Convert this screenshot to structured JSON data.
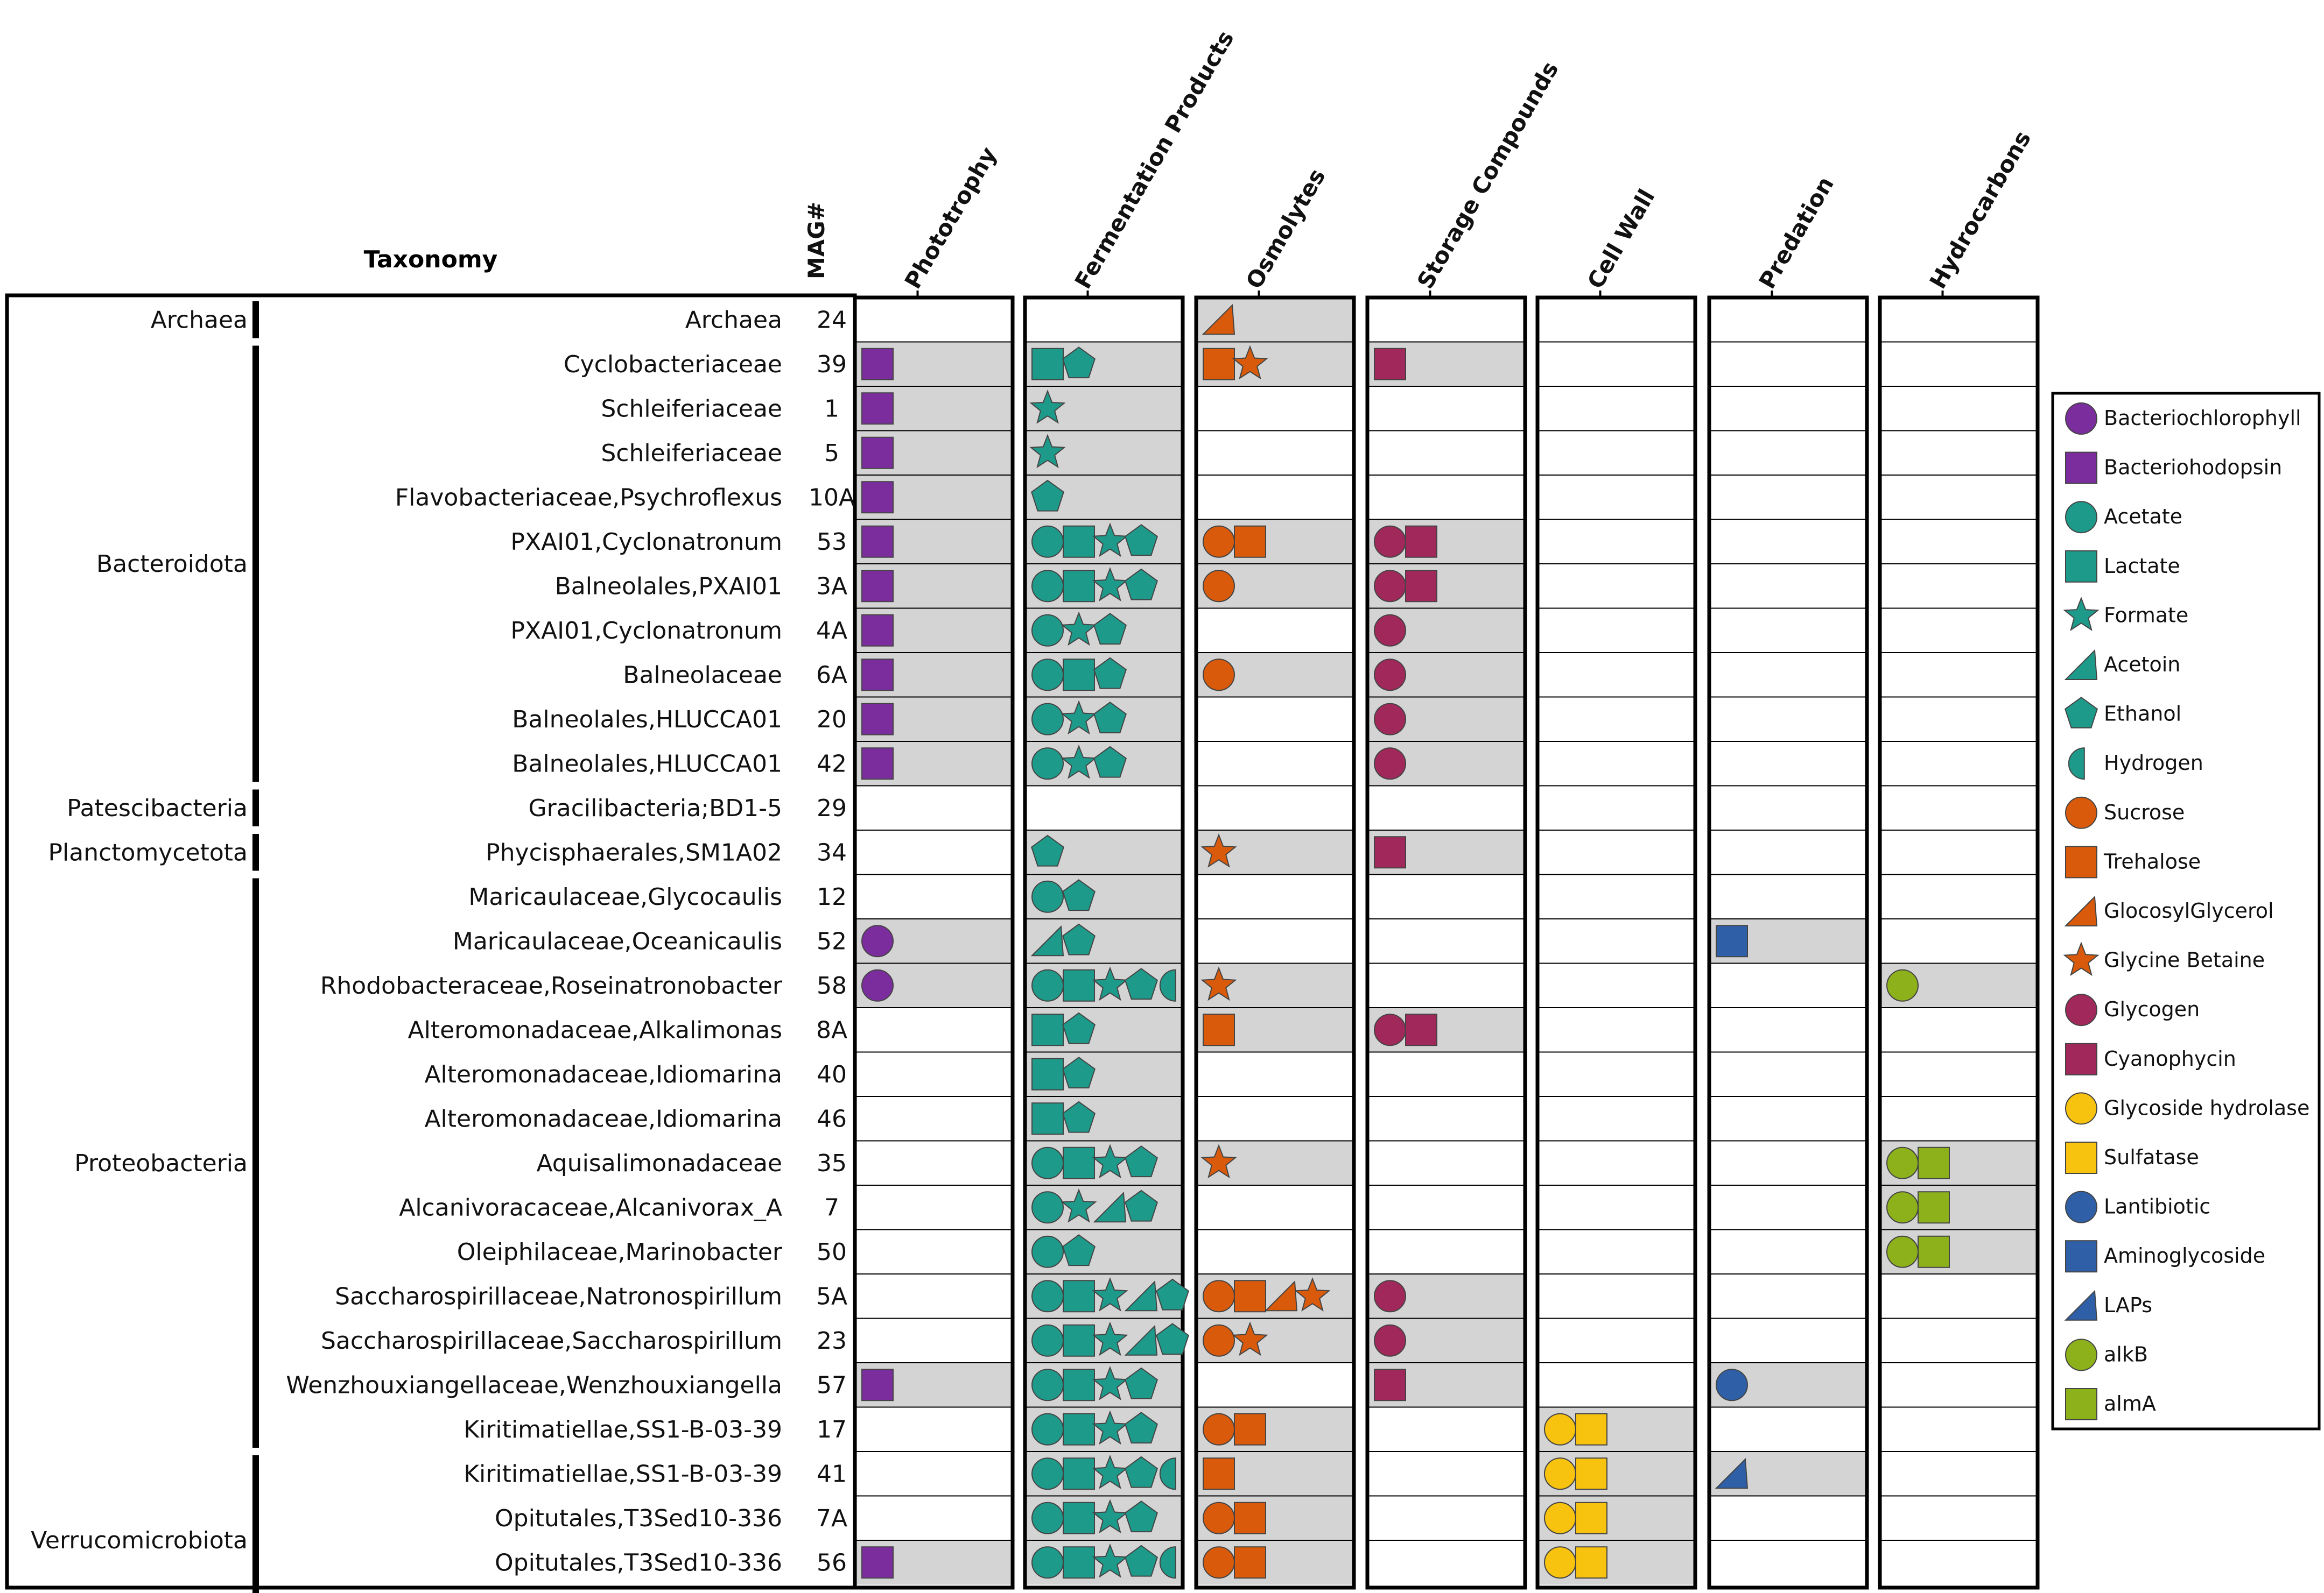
{
  "chart_data": {
    "type": "table",
    "title": "Taxonomy",
    "mag_header": "MAG#",
    "columns": [
      "Phototrophy",
      "Fermentation Products",
      "Osmolytes",
      "Storage Compounds",
      "Cell Wall",
      "Predation",
      "Hydrocarbons"
    ],
    "phyla": [
      {
        "name": "Archaea",
        "rows": [
          0,
          0
        ]
      },
      {
        "name": "Bacteroidota",
        "rows": [
          1,
          10
        ]
      },
      {
        "name": "Patescibacteria",
        "rows": [
          11,
          11
        ]
      },
      {
        "name": "Planctomycetota",
        "rows": [
          12,
          12
        ]
      },
      {
        "name": "Proteobacteria",
        "rows": [
          13,
          25
        ]
      },
      {
        "name": "Verrucomicrobiota",
        "rows": [
          26,
          29
        ]
      }
    ],
    "rows": [
      {
        "taxon": "Archaea",
        "mag": "24",
        "shaded": [
          false,
          false,
          true,
          false,
          false,
          false,
          false
        ],
        "cells": [
          [],
          [],
          [
            "GlocosylGlycerol"
          ],
          [],
          [],
          [],
          []
        ]
      },
      {
        "taxon": "Cyclobacteriaceae",
        "mag": "39",
        "shaded": [
          true,
          true,
          true,
          true,
          false,
          false,
          false
        ],
        "cells": [
          [
            "Bacteriohodopsin"
          ],
          [
            "Lactate",
            "Ethanol"
          ],
          [
            "Trehalose",
            "Glycine Betaine"
          ],
          [
            "Cyanophycin"
          ],
          [],
          [],
          []
        ]
      },
      {
        "taxon": "Schleiferiaceae",
        "mag": "1",
        "shaded": [
          true,
          true,
          false,
          false,
          false,
          false,
          false
        ],
        "cells": [
          [
            "Bacteriohodopsin"
          ],
          [
            "Formate"
          ],
          [],
          [],
          [],
          [],
          []
        ]
      },
      {
        "taxon": "Schleiferiaceae",
        "mag": "5",
        "shaded": [
          true,
          true,
          false,
          false,
          false,
          false,
          false
        ],
        "cells": [
          [
            "Bacteriohodopsin"
          ],
          [
            "Formate"
          ],
          [],
          [],
          [],
          [],
          []
        ]
      },
      {
        "taxon": "Flavobacteriaceae,Psychroflexus",
        "mag": "10A",
        "shaded": [
          true,
          true,
          false,
          false,
          false,
          false,
          false
        ],
        "cells": [
          [
            "Bacteriohodopsin"
          ],
          [
            "Ethanol"
          ],
          [],
          [],
          [],
          [],
          []
        ]
      },
      {
        "taxon": "PXAI01,Cyclonatronum",
        "mag": "53",
        "shaded": [
          true,
          true,
          true,
          true,
          false,
          false,
          false
        ],
        "cells": [
          [
            "Bacteriohodopsin"
          ],
          [
            "Acetate",
            "Lactate",
            "Formate",
            "Ethanol"
          ],
          [
            "Sucrose",
            "Trehalose"
          ],
          [
            "Glycogen",
            "Cyanophycin"
          ],
          [],
          [],
          []
        ]
      },
      {
        "taxon": "Balneolales,PXAI01",
        "mag": "3A",
        "shaded": [
          true,
          true,
          true,
          true,
          false,
          false,
          false
        ],
        "cells": [
          [
            "Bacteriohodopsin"
          ],
          [
            "Acetate",
            "Lactate",
            "Formate",
            "Ethanol"
          ],
          [
            "Sucrose"
          ],
          [
            "Glycogen",
            "Cyanophycin"
          ],
          [],
          [],
          []
        ]
      },
      {
        "taxon": "PXAI01,Cyclonatronum",
        "mag": "4A",
        "shaded": [
          true,
          true,
          false,
          true,
          false,
          false,
          false
        ],
        "cells": [
          [
            "Bacteriohodopsin"
          ],
          [
            "Acetate",
            "Formate",
            "Ethanol"
          ],
          [],
          [
            "Glycogen"
          ],
          [],
          [],
          []
        ]
      },
      {
        "taxon": "Balneolaceae",
        "mag": "6A",
        "shaded": [
          true,
          true,
          true,
          true,
          false,
          false,
          false
        ],
        "cells": [
          [
            "Bacteriohodopsin"
          ],
          [
            "Acetate",
            "Lactate",
            "Ethanol"
          ],
          [
            "Sucrose"
          ],
          [
            "Glycogen"
          ],
          [],
          [],
          []
        ]
      },
      {
        "taxon": "Balneolales,HLUCCA01",
        "mag": "20",
        "shaded": [
          true,
          true,
          false,
          true,
          false,
          false,
          false
        ],
        "cells": [
          [
            "Bacteriohodopsin"
          ],
          [
            "Acetate",
            "Formate",
            "Ethanol"
          ],
          [],
          [
            "Glycogen"
          ],
          [],
          [],
          []
        ]
      },
      {
        "taxon": "Balneolales,HLUCCA01",
        "mag": "42",
        "shaded": [
          true,
          true,
          false,
          true,
          false,
          false,
          false
        ],
        "cells": [
          [
            "Bacteriohodopsin"
          ],
          [
            "Acetate",
            "Formate",
            "Ethanol"
          ],
          [],
          [
            "Glycogen"
          ],
          [],
          [],
          []
        ]
      },
      {
        "taxon": "Gracilibacteria;BD1-5",
        "mag": "29",
        "shaded": [
          false,
          false,
          false,
          false,
          false,
          false,
          false
        ],
        "cells": [
          [],
          [],
          [],
          [],
          [],
          [],
          []
        ]
      },
      {
        "taxon": "Phycisphaerales,SM1A02",
        "mag": "34",
        "shaded": [
          false,
          true,
          true,
          true,
          false,
          false,
          false
        ],
        "cells": [
          [],
          [
            "Ethanol"
          ],
          [
            "Glycine Betaine"
          ],
          [
            "Cyanophycin"
          ],
          [],
          [],
          []
        ]
      },
      {
        "taxon": "Maricaulaceae,Glycocaulis",
        "mag": "12",
        "shaded": [
          false,
          true,
          false,
          false,
          false,
          false,
          false
        ],
        "cells": [
          [],
          [
            "Acetate",
            "Ethanol"
          ],
          [],
          [],
          [],
          [],
          []
        ]
      },
      {
        "taxon": "Maricaulaceae,Oceanicaulis",
        "mag": "52",
        "shaded": [
          true,
          true,
          false,
          false,
          false,
          true,
          false
        ],
        "cells": [
          [
            "Bacteriochlorophyll"
          ],
          [
            "Acetoin",
            "Ethanol"
          ],
          [],
          [],
          [],
          [
            "Aminoglycoside"
          ],
          []
        ]
      },
      {
        "taxon": "Rhodobacteraceae,Roseinatronobacter",
        "mag": "58",
        "shaded": [
          true,
          true,
          true,
          false,
          false,
          false,
          true
        ],
        "cells": [
          [
            "Bacteriochlorophyll"
          ],
          [
            "Acetate",
            "Lactate",
            "Formate",
            "Ethanol",
            "Hydrogen"
          ],
          [
            "Glycine Betaine"
          ],
          [],
          [],
          [],
          [
            "alkB"
          ]
        ]
      },
      {
        "taxon": "Alteromonadaceae,Alkalimonas",
        "mag": "8A",
        "shaded": [
          false,
          true,
          true,
          true,
          false,
          false,
          false
        ],
        "cells": [
          [],
          [
            "Lactate",
            "Ethanol"
          ],
          [
            "Trehalose"
          ],
          [
            "Glycogen",
            "Cyanophycin"
          ],
          [],
          [],
          []
        ]
      },
      {
        "taxon": "Alteromonadaceae,Idiomarina",
        "mag": "40",
        "shaded": [
          false,
          true,
          false,
          false,
          false,
          false,
          false
        ],
        "cells": [
          [],
          [
            "Lactate",
            "Ethanol"
          ],
          [],
          [],
          [],
          [],
          []
        ]
      },
      {
        "taxon": "Alteromonadaceae,Idiomarina",
        "mag": "46",
        "shaded": [
          false,
          true,
          false,
          false,
          false,
          false,
          false
        ],
        "cells": [
          [],
          [
            "Lactate",
            "Ethanol"
          ],
          [],
          [],
          [],
          [],
          []
        ]
      },
      {
        "taxon": "Aquisalimonadaceae",
        "mag": "35",
        "shaded": [
          false,
          true,
          true,
          false,
          false,
          false,
          true
        ],
        "cells": [
          [],
          [
            "Acetate",
            "Lactate",
            "Formate",
            "Ethanol"
          ],
          [
            "Glycine Betaine"
          ],
          [],
          [],
          [],
          [
            "alkB",
            "almA"
          ]
        ]
      },
      {
        "taxon": "Alcanivoracaceae,Alcanivorax_A",
        "mag": "7",
        "shaded": [
          false,
          true,
          false,
          false,
          false,
          false,
          true
        ],
        "cells": [
          [],
          [
            "Acetate",
            "Formate",
            "Acetoin",
            "Ethanol"
          ],
          [],
          [],
          [],
          [],
          [
            "alkB",
            "almA"
          ]
        ]
      },
      {
        "taxon": "Oleiphilaceae,Marinobacter",
        "mag": "50",
        "shaded": [
          false,
          true,
          false,
          false,
          false,
          false,
          true
        ],
        "cells": [
          [],
          [
            "Acetate",
            "Ethanol"
          ],
          [],
          [],
          [],
          [],
          [
            "alkB",
            "almA"
          ]
        ]
      },
      {
        "taxon": "Saccharospirillaceae,Natronospirillum",
        "mag": "5A",
        "shaded": [
          false,
          true,
          true,
          true,
          false,
          false,
          false
        ],
        "cells": [
          [],
          [
            "Acetate",
            "Lactate",
            "Formate",
            "Acetoin",
            "Ethanol"
          ],
          [
            "Sucrose",
            "Trehalose",
            "GlocosylGlycerol",
            "Glycine Betaine"
          ],
          [
            "Glycogen"
          ],
          [],
          [],
          []
        ]
      },
      {
        "taxon": "Saccharospirillaceae,Saccharospirillum",
        "mag": "23",
        "shaded": [
          false,
          true,
          true,
          true,
          false,
          false,
          false
        ],
        "cells": [
          [],
          [
            "Acetate",
            "Lactate",
            "Formate",
            "Acetoin",
            "Ethanol"
          ],
          [
            "Sucrose",
            "Glycine Betaine"
          ],
          [
            "Glycogen"
          ],
          [],
          [],
          []
        ]
      },
      {
        "taxon": "Wenzhouxiangellaceae,Wenzhouxiangella",
        "mag": "57",
        "shaded": [
          true,
          true,
          false,
          true,
          false,
          true,
          false
        ],
        "cells": [
          [
            "Bacteriohodopsin"
          ],
          [
            "Acetate",
            "Lactate",
            "Formate",
            "Ethanol"
          ],
          [],
          [
            "Cyanophycin"
          ],
          [],
          [
            "Lantibiotic"
          ],
          []
        ]
      },
      {
        "taxon": "Kiritimatiellae,SS1-B-03-39",
        "mag": "17",
        "shaded": [
          false,
          true,
          true,
          false,
          true,
          false,
          false
        ],
        "cells": [
          [],
          [
            "Acetate",
            "Lactate",
            "Formate",
            "Ethanol"
          ],
          [
            "Sucrose",
            "Trehalose"
          ],
          [],
          [
            "Glycoside hydrolase",
            "Sulfatase"
          ],
          [],
          []
        ]
      },
      {
        "taxon": "Kiritimatiellae,SS1-B-03-39",
        "mag": "41",
        "shaded": [
          false,
          true,
          true,
          false,
          true,
          true,
          false
        ],
        "cells": [
          [],
          [
            "Acetate",
            "Lactate",
            "Formate",
            "Ethanol",
            "Hydrogen"
          ],
          [
            "Trehalose"
          ],
          [],
          [
            "Glycoside hydrolase",
            "Sulfatase"
          ],
          [
            "LAPs"
          ],
          []
        ]
      },
      {
        "taxon": "Opitutales,T3Sed10-336",
        "mag": "7A",
        "shaded": [
          false,
          true,
          true,
          false,
          true,
          false,
          false
        ],
        "cells": [
          [],
          [
            "Acetate",
            "Lactate",
            "Formate",
            "Ethanol"
          ],
          [
            "Sucrose",
            "Trehalose"
          ],
          [],
          [
            "Glycoside hydrolase",
            "Sulfatase"
          ],
          [],
          []
        ]
      },
      {
        "taxon": "Opitutales,T3Sed10-336",
        "mag": "56",
        "shaded": [
          true,
          true,
          true,
          false,
          true,
          false,
          false
        ],
        "cells": [
          [
            "Bacteriohodopsin"
          ],
          [
            "Acetate",
            "Lactate",
            "Formate",
            "Ethanol",
            "Hydrogen"
          ],
          [
            "Sucrose",
            "Trehalose"
          ],
          [],
          [
            "Glycoside hydrolase",
            "Sulfatase"
          ],
          [],
          []
        ]
      }
    ],
    "legend": [
      {
        "label": "Bacteriochlorophyll",
        "shape": "circle",
        "color": "#7B2D9E"
      },
      {
        "label": "Bacteriohodopsin",
        "shape": "square",
        "color": "#7B2D9E"
      },
      {
        "label": "Acetate",
        "shape": "circle",
        "color": "#1E9A8A"
      },
      {
        "label": "Lactate",
        "shape": "square",
        "color": "#1E9A8A"
      },
      {
        "label": "Formate",
        "shape": "star",
        "color": "#1E9A8A"
      },
      {
        "label": "Acetoin",
        "shape": "triangle",
        "color": "#1E9A8A"
      },
      {
        "label": "Ethanol",
        "shape": "pentagon",
        "color": "#1E9A8A"
      },
      {
        "label": "Hydrogen",
        "shape": "halfcircle",
        "color": "#1E9A8A"
      },
      {
        "label": "Sucrose",
        "shape": "circle",
        "color": "#D95A0B"
      },
      {
        "label": "Trehalose",
        "shape": "square",
        "color": "#D95A0B"
      },
      {
        "label": "GlocosylGlycerol",
        "shape": "triangle",
        "color": "#D95A0B"
      },
      {
        "label": "Glycine Betaine",
        "shape": "star",
        "color": "#D95A0B"
      },
      {
        "label": "Glycogen",
        "shape": "circle",
        "color": "#A1285A"
      },
      {
        "label": "Cyanophycin",
        "shape": "square",
        "color": "#A1285A"
      },
      {
        "label": "Glycoside hydrolase",
        "shape": "circle",
        "color": "#F8C30E"
      },
      {
        "label": "Sulfatase",
        "shape": "square",
        "color": "#F8C30E"
      },
      {
        "label": "Lantibiotic",
        "shape": "circle",
        "color": "#2F5FA7"
      },
      {
        "label": "Aminoglycoside",
        "shape": "square",
        "color": "#2F5FA7"
      },
      {
        "label": "LAPs",
        "shape": "triangle",
        "color": "#2F5FA7"
      },
      {
        "label": "alkB",
        "shape": "circle",
        "color": "#8DB11B"
      },
      {
        "label": "almA",
        "shape": "square",
        "color": "#8DB11B"
      }
    ]
  },
  "colors": {
    "shade": "#D4D4D4",
    "border": "#000000",
    "text": "#111111"
  }
}
